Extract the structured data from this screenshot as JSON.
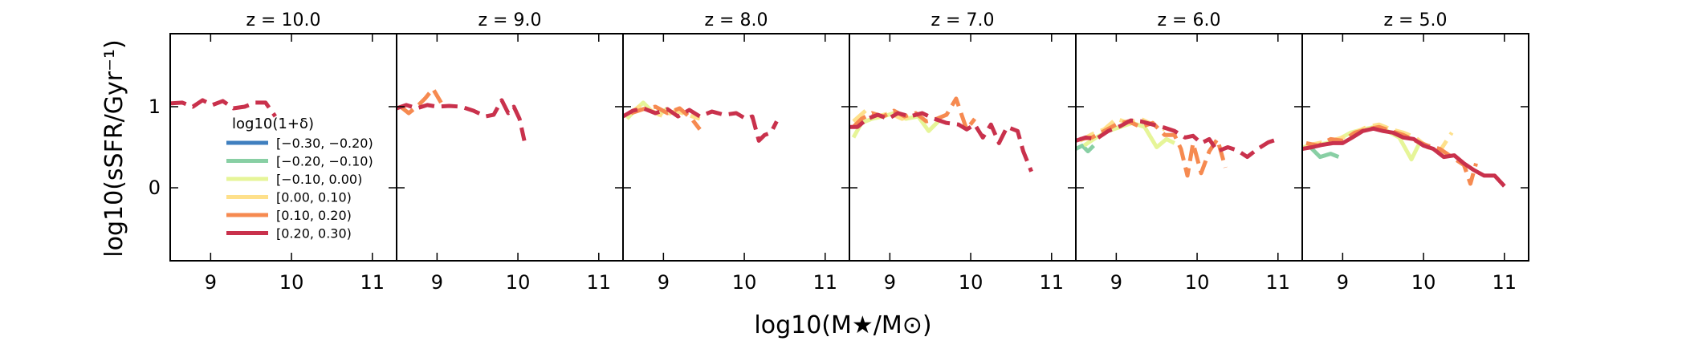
{
  "chart_data": {
    "type": "line",
    "xlabel": "log10(M★/M⊙)",
    "ylabel": "log10(sSFR/Gyr⁻¹)",
    "xlim": [
      8.5,
      11.3
    ],
    "ylim": [
      -0.9,
      1.9
    ],
    "xticks": [
      9,
      10,
      11
    ],
    "xtick_labels": [
      "9",
      "10",
      "11"
    ],
    "yticks": [
      0,
      1
    ],
    "ytick_labels": [
      "0",
      "1"
    ],
    "legend": {
      "title": "log10(1+δ)",
      "location": "lower-left of first panel",
      "entries": [
        {
          "label": "[−0.30, −0.20)",
          "color": "#3f7fbf"
        },
        {
          "label": "[−0.20, −0.10)",
          "color": "#88cfa4"
        },
        {
          "label": "[−0.10, 0.00)",
          "color": "#e6f598"
        },
        {
          "label": "[0.00, 0.10)",
          "color": "#fee08b"
        },
        {
          "label": "[0.10, 0.20)",
          "color": "#f68a50"
        },
        {
          "label": "[0.20, 0.30)",
          "color": "#c9314c"
        }
      ]
    },
    "panels": [
      {
        "title": "z = 10.0",
        "series": [
          {
            "name": "[0.20, 0.30)",
            "color": "#c9314c",
            "x": [
              8.5,
              8.65,
              8.78,
              8.9,
              9.02,
              9.15,
              9.28,
              9.42,
              9.55,
              9.68,
              9.8
            ],
            "y": [
              1.04,
              1.05,
              1.0,
              1.08,
              1.02,
              1.07,
              0.98,
              1.0,
              1.05,
              1.05,
              0.88
            ],
            "dashed": true
          }
        ]
      },
      {
        "title": "z = 9.0",
        "series": [
          {
            "name": "[0.10, 0.20)",
            "color": "#f68a50",
            "x": [
              8.55,
              8.65,
              8.75,
              8.85,
              8.95,
              9.05
            ],
            "y": [
              1.0,
              0.92,
              1.0,
              1.1,
              1.22,
              1.05
            ],
            "dashed": true
          },
          {
            "name": "[0.20, 0.30)",
            "color": "#c9314c",
            "x": [
              8.5,
              8.62,
              8.75,
              8.88,
              9.0,
              9.15,
              9.3,
              9.45,
              9.6,
              9.7,
              9.8,
              9.88,
              9.95,
              10.02,
              10.08
            ],
            "y": [
              0.98,
              1.02,
              0.98,
              1.02,
              1.0,
              1.01,
              1.0,
              0.95,
              0.88,
              0.9,
              1.08,
              0.92,
              1.0,
              0.85,
              0.58
            ],
            "dashed": true
          }
        ]
      },
      {
        "title": "z = 8.0",
        "series": [
          {
            "name": "[−0.10, 0.00)",
            "color": "#e6f598",
            "x": [
              8.55,
              8.65,
              8.75,
              8.85,
              8.95,
              9.05
            ],
            "y": [
              0.85,
              0.96,
              1.05,
              0.95,
              0.9,
              0.98
            ],
            "dashed": false
          },
          {
            "name": "[0.00, 0.10)",
            "color": "#fee08b",
            "x": [
              8.55,
              8.7,
              8.85,
              9.0,
              9.15,
              9.3,
              9.45
            ],
            "y": [
              0.9,
              1.0,
              0.95,
              0.88,
              0.95,
              0.9,
              0.85
            ],
            "dashed": true
          },
          {
            "name": "[0.10, 0.20)",
            "color": "#f68a50",
            "x": [
              8.6,
              8.75,
              8.9,
              9.05,
              9.2,
              9.35,
              9.45
            ],
            "y": [
              0.92,
              0.97,
              1.0,
              0.92,
              0.98,
              0.85,
              0.72
            ],
            "dashed": true
          },
          {
            "name": "[0.20, 0.30)",
            "color": "#c9314c",
            "x": [
              8.5,
              8.62,
              8.75,
              8.9,
              9.05,
              9.18,
              9.32,
              9.45,
              9.6,
              9.75,
              9.9,
              10.02,
              10.1,
              10.18,
              10.25,
              10.33,
              10.4
            ],
            "y": [
              0.88,
              0.95,
              0.98,
              0.92,
              0.97,
              0.88,
              0.96,
              0.88,
              0.94,
              0.9,
              0.92,
              0.85,
              0.88,
              0.58,
              0.65,
              0.68,
              0.82
            ],
            "dashed": true
          }
        ]
      },
      {
        "title": "z = 7.0",
        "series": [
          {
            "name": "[−0.10, 0.00)",
            "color": "#e6f598",
            "x": [
              8.55,
              8.65,
              8.78,
              8.92,
              9.05,
              9.2,
              9.35,
              9.48,
              9.6
            ],
            "y": [
              0.62,
              0.8,
              0.85,
              0.88,
              0.92,
              0.85,
              0.88,
              0.7,
              0.82
            ],
            "dashed": false
          },
          {
            "name": "[0.00, 0.10)",
            "color": "#fee08b",
            "x": [
              8.55,
              8.7,
              8.85,
              9.0,
              9.15,
              9.3
            ],
            "y": [
              0.82,
              0.95,
              0.88,
              0.92,
              0.85,
              0.9
            ],
            "dashed": true
          },
          {
            "name": "[0.10, 0.20)",
            "color": "#f68a50",
            "x": [
              8.55,
              8.65,
              8.78,
              8.92,
              9.05,
              9.18,
              9.32,
              9.45,
              9.58,
              9.7,
              9.82,
              9.95,
              10.05
            ],
            "y": [
              0.75,
              0.85,
              0.92,
              0.88,
              0.95,
              0.88,
              0.92,
              0.82,
              0.85,
              0.9,
              1.1,
              0.72,
              0.85
            ],
            "dashed": true
          },
          {
            "name": "[0.20, 0.30)",
            "color": "#c9314c",
            "x": [
              8.5,
              8.6,
              8.72,
              8.85,
              8.98,
              9.1,
              9.25,
              9.4,
              9.55,
              9.7,
              9.85,
              9.95,
              10.05,
              10.15,
              10.25,
              10.35,
              10.45,
              10.58,
              10.65,
              10.75
            ],
            "y": [
              0.75,
              0.75,
              0.85,
              0.9,
              0.85,
              0.92,
              0.88,
              0.92,
              0.85,
              0.8,
              0.78,
              0.72,
              0.78,
              0.62,
              0.78,
              0.55,
              0.75,
              0.7,
              0.45,
              0.2
            ],
            "dashed": true
          }
        ]
      },
      {
        "title": "z = 6.0",
        "series": [
          {
            "name": "[−0.20, −0.10)",
            "color": "#88cfa4",
            "x": [
              8.5,
              8.58,
              8.65,
              8.72
            ],
            "y": [
              0.48,
              0.52,
              0.45,
              0.52
            ],
            "dashed": false
          },
          {
            "name": "[−0.10, 0.00)",
            "color": "#e6f598",
            "x": [
              8.6,
              8.75,
              8.9,
              9.05,
              9.2,
              9.35,
              9.5,
              9.62,
              9.72
            ],
            "y": [
              0.52,
              0.62,
              0.7,
              0.75,
              0.8,
              0.75,
              0.5,
              0.6,
              0.55
            ],
            "dashed": false
          },
          {
            "name": "[0.00, 0.10)",
            "color": "#fee08b",
            "x": [
              8.55,
              8.7,
              8.85,
              9.0,
              9.15,
              9.3,
              9.45,
              9.6
            ],
            "y": [
              0.58,
              0.66,
              0.72,
              0.85,
              0.8,
              0.85,
              0.78,
              0.72
            ],
            "dashed": true
          },
          {
            "name": "[0.10, 0.20)",
            "color": "#f68a50",
            "x": [
              8.55,
              8.7,
              8.85,
              9.0,
              9.15,
              9.3,
              9.45,
              9.6,
              9.72,
              9.8,
              9.88,
              9.95,
              10.05,
              10.15,
              10.25,
              10.35
            ],
            "y": [
              0.6,
              0.62,
              0.7,
              0.78,
              0.82,
              0.75,
              0.8,
              0.65,
              0.65,
              0.48,
              0.15,
              0.55,
              0.18,
              0.45,
              0.6,
              0.25
            ],
            "dashed": true
          },
          {
            "name": "[0.20, 0.30)",
            "color": "#c9314c",
            "x": [
              8.5,
              8.62,
              8.75,
              8.9,
              9.05,
              9.18,
              9.3,
              9.45,
              9.6,
              9.72,
              9.85,
              9.95,
              10.05,
              10.15,
              10.25,
              10.38,
              10.5,
              10.62,
              10.75,
              10.88,
              11.0
            ],
            "y": [
              0.58,
              0.62,
              0.6,
              0.7,
              0.76,
              0.83,
              0.82,
              0.78,
              0.74,
              0.7,
              0.62,
              0.64,
              0.55,
              0.6,
              0.45,
              0.5,
              0.46,
              0.38,
              0.48,
              0.56,
              0.6
            ],
            "dashed": true
          }
        ]
      },
      {
        "title": "z = 5.0",
        "series": [
          {
            "name": "[−0.20, −0.10)",
            "color": "#88cfa4",
            "x": [
              8.5,
              8.6,
              8.72,
              8.85,
              8.95
            ],
            "y": [
              0.48,
              0.5,
              0.38,
              0.42,
              0.38
            ],
            "dashed": false
          },
          {
            "name": "[−0.10, 0.00)",
            "color": "#e6f598",
            "x": [
              8.5,
              8.65,
              8.8,
              8.95,
              9.1,
              9.25,
              9.4,
              9.55,
              9.7,
              9.85,
              9.95
            ],
            "y": [
              0.5,
              0.52,
              0.55,
              0.6,
              0.68,
              0.72,
              0.75,
              0.7,
              0.62,
              0.35,
              0.55
            ],
            "dashed": false
          },
          {
            "name": "[0.00, 0.10)",
            "color": "#fee08b",
            "x": [
              8.55,
              8.7,
              8.85,
              9.0,
              9.15,
              9.3,
              9.45,
              9.6,
              9.75,
              9.9,
              10.05,
              10.2,
              10.35
            ],
            "y": [
              0.52,
              0.55,
              0.58,
              0.62,
              0.68,
              0.75,
              0.78,
              0.72,
              0.68,
              0.62,
              0.5,
              0.45,
              0.68
            ],
            "dashed": true
          },
          {
            "name": "[0.10, 0.20)",
            "color": "#f68a50",
            "x": [
              8.55,
              8.7,
              8.85,
              9.0,
              9.15,
              9.3,
              9.45,
              9.6,
              9.75,
              9.9,
              10.05,
              10.2,
              10.35,
              10.5,
              10.58,
              10.65
            ],
            "y": [
              0.55,
              0.52,
              0.6,
              0.58,
              0.68,
              0.72,
              0.75,
              0.7,
              0.65,
              0.58,
              0.52,
              0.48,
              0.38,
              0.28,
              0.05,
              0.3
            ],
            "dashed": true
          },
          {
            "name": "[0.20, 0.30)",
            "color": "#c9314c",
            "x": [
              8.5,
              8.62,
              8.75,
              8.88,
              9.0,
              9.12,
              9.25,
              9.38,
              9.5,
              9.62,
              9.75,
              9.88,
              10.0,
              10.12,
              10.25,
              10.38,
              10.5,
              10.62,
              10.75,
              10.88,
              11.0
            ],
            "y": [
              0.48,
              0.5,
              0.53,
              0.55,
              0.55,
              0.62,
              0.7,
              0.73,
              0.7,
              0.68,
              0.62,
              0.6,
              0.52,
              0.48,
              0.38,
              0.4,
              0.3,
              0.22,
              0.15,
              0.15,
              0.02
            ],
            "dashed": false
          }
        ]
      }
    ]
  }
}
